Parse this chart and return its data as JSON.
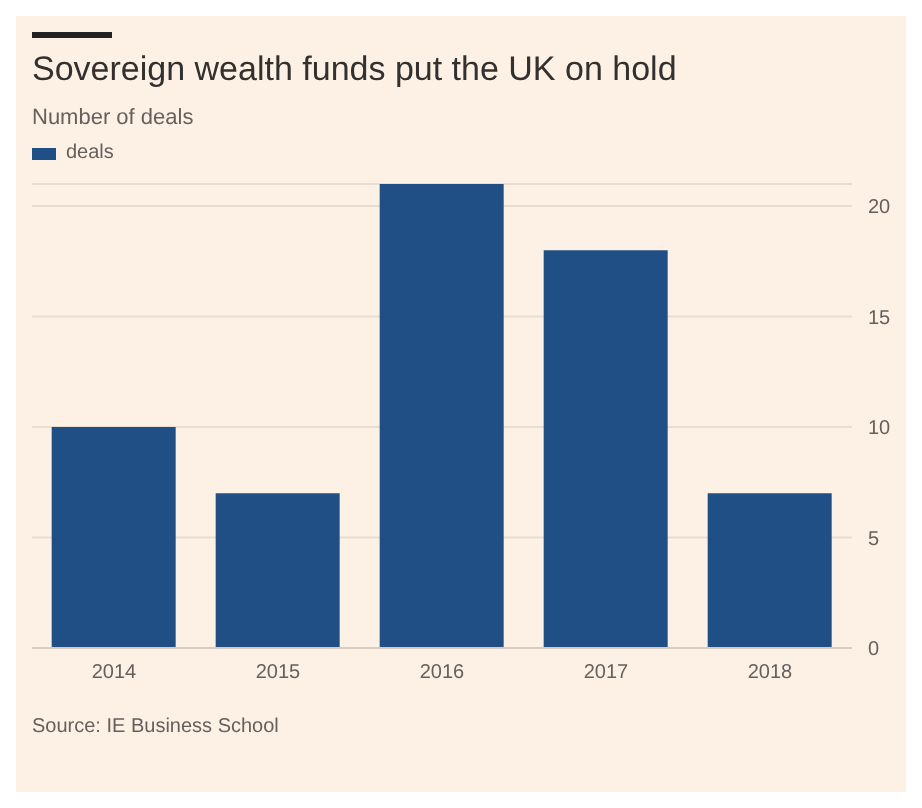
{
  "chart_data": {
    "type": "bar",
    "title": "Sovereign wealth funds put the UK on hold",
    "subtitle": "Number of deals",
    "categories": [
      "2014",
      "2015",
      "2016",
      "2017",
      "2018"
    ],
    "series": [
      {
        "name": "deals",
        "color": "#1f4f84",
        "values": [
          10,
          7,
          21,
          18,
          7
        ]
      }
    ],
    "ylim": [
      0,
      21
    ],
    "yticks": [
      0,
      5,
      10,
      15,
      20
    ],
    "grid": "y",
    "legend": "top left",
    "annotations": [
      "Source: IE Business School"
    ]
  }
}
